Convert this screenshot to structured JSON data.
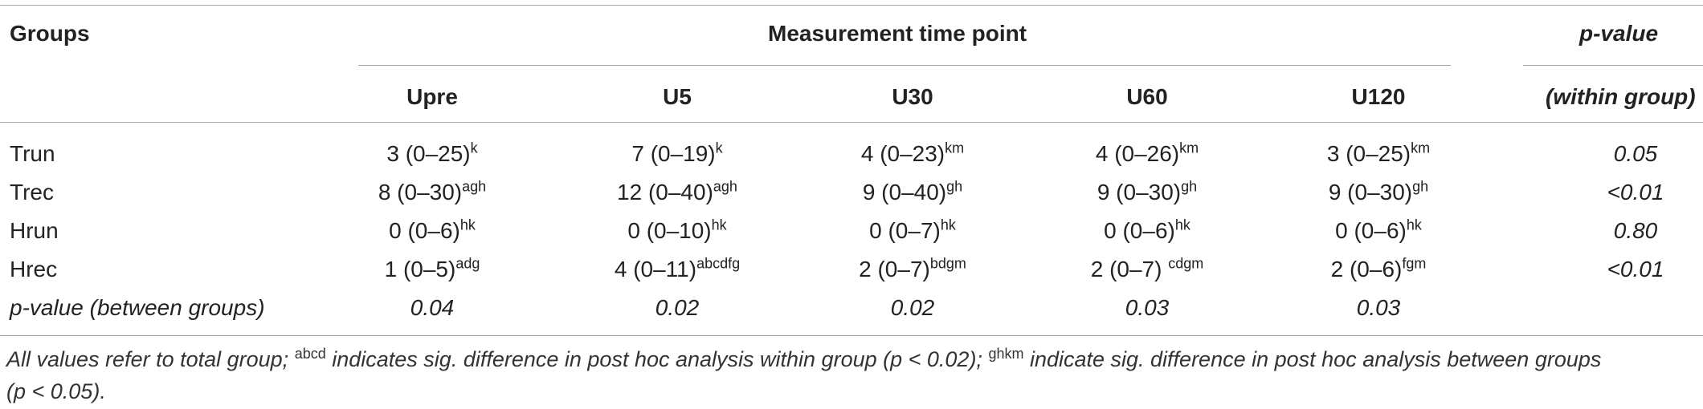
{
  "table": {
    "col_groups": "Groups",
    "col_timepoint": "Measurement time point",
    "col_pvalue": "p-value",
    "col_pvalue_sub": "(within group)",
    "timepoints": [
      "Upre",
      "U5",
      "U30",
      "U60",
      "U120"
    ],
    "rows": [
      {
        "label": "Trun",
        "cells": [
          {
            "v": "3 (0–25)",
            "s": "k"
          },
          {
            "v": "7 (0–19)",
            "s": "k"
          },
          {
            "v": "4 (0–23)",
            "s": "km"
          },
          {
            "v": "4 (0–26)",
            "s": "km"
          },
          {
            "v": "3 (0–25)",
            "s": "km"
          }
        ],
        "p": "0.05"
      },
      {
        "label": "Trec",
        "cells": [
          {
            "v": "8 (0–30)",
            "s": "agh"
          },
          {
            "v": "12 (0–40)",
            "s": "agh"
          },
          {
            "v": "9 (0–40)",
            "s": "gh"
          },
          {
            "v": "9 (0–30)",
            "s": "gh"
          },
          {
            "v": "9 (0–30)",
            "s": "gh"
          }
        ],
        "p": "<0.01"
      },
      {
        "label": "Hrun",
        "cells": [
          {
            "v": "0 (0–6)",
            "s": "hk"
          },
          {
            "v": "0 (0–10)",
            "s": "hk"
          },
          {
            "v": "0 (0–7)",
            "s": "hk"
          },
          {
            "v": "0 (0–6)",
            "s": "hk"
          },
          {
            "v": "0 (0–6)",
            "s": "hk"
          }
        ],
        "p": "0.80"
      },
      {
        "label": "Hrec",
        "cells": [
          {
            "v": "1 (0–5)",
            "s": "adg"
          },
          {
            "v": "4 (0–11)",
            "s": "abcdfg"
          },
          {
            "v": "2 (0–7)",
            "s": "bdgm"
          },
          {
            "v": "2 (0–7) ",
            "s": "cdgm"
          },
          {
            "v": "2 (0–6)",
            "s": "fgm"
          }
        ],
        "p": "<0.01"
      }
    ],
    "between_row": {
      "label": "p-value (between groups)",
      "values": [
        "0.04",
        "0.02",
        "0.02",
        "0.03",
        "0.03"
      ]
    }
  },
  "footnote": {
    "part1": "All values refer to total group; ",
    "sup1": "abcd",
    "part2": " indicates sig. difference in post hoc analysis within group (p < 0.02); ",
    "sup2": "ghkm",
    "part3": " indicate sig. difference in post hoc analysis between groups",
    "line2": "(p < 0.05)."
  }
}
